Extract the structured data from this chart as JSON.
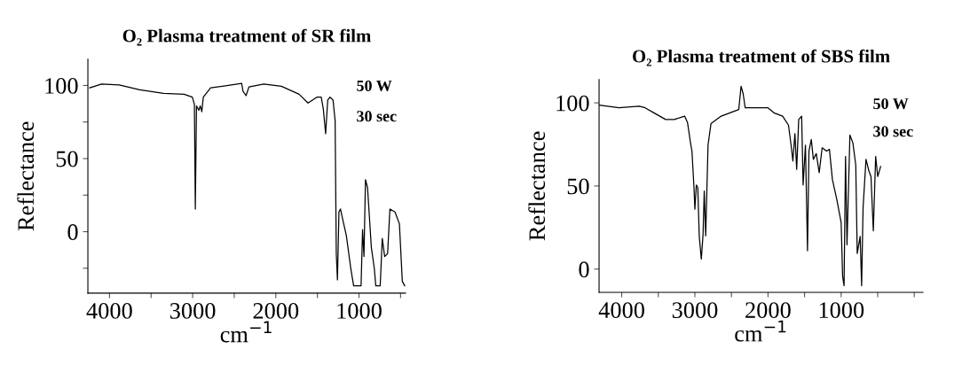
{
  "chart_data": [
    {
      "type": "line",
      "title": "O₂ Plasma treatment of SR film",
      "xlabel": "cm$^{−1}$",
      "ylabel": "Reflectance",
      "annotations": [
        "50 W",
        "30 sec"
      ],
      "color": "#000000",
      "grid": false,
      "legend": false,
      "marker": "none",
      "line_style": "solid",
      "xlim": [
        4260,
        440
      ],
      "xticks": [
        4000,
        {
          "value": 3500,
          "label": null
        },
        3000,
        {
          "value": 2500,
          "label": null
        },
        2000,
        {
          "value": 1500,
          "label": null
        },
        1000,
        {
          "value": 500,
          "label": null
        }
      ],
      "ylim": [
        -42,
        118
      ],
      "yticks": [
        {
          "value": -25,
          "label": null
        },
        0,
        {
          "value": 25,
          "label": null
        },
        50,
        {
          "value": 75,
          "label": null
        },
        100
      ],
      "x": [
        4238,
        4096,
        3883,
        3635,
        3351,
        3103,
        3004,
        2979,
        2968,
        2954,
        2926,
        2908,
        2890,
        2872,
        2784,
        2571,
        2411,
        2394,
        2358,
        2323,
        2145,
        1933,
        1720,
        1613,
        1507,
        1454,
        1429,
        1401,
        1376,
        1348,
        1312,
        1287,
        1273,
        1259,
        1241,
        1223,
        1188,
        1152,
        1099,
        1064,
        975,
        957,
        940,
        922,
        897,
        851,
        816,
        798,
        745,
        720,
        691,
        656,
        628,
        567,
        514,
        479,
        450
      ],
      "values": [
        98.4,
        101,
        100.4,
        97,
        94.6,
        94,
        92,
        87,
        15.5,
        86,
        83,
        86,
        82,
        92,
        98.4,
        100,
        101.4,
        96,
        93,
        99,
        101,
        99.4,
        94,
        88,
        92,
        92,
        84,
        67,
        90,
        92,
        90,
        76,
        -15,
        -33,
        13.5,
        15.5,
        6.4,
        -2.6,
        -25,
        -37,
        -37,
        1.4,
        -17,
        35.6,
        30,
        -11,
        -25,
        -37,
        -37,
        -4.6,
        -17,
        -15,
        15.5,
        13.5,
        5.4,
        -34,
        -37
      ]
    },
    {
      "type": "line",
      "title": "O₂ Plasma treatment of SBS film",
      "xlabel": "cm$^{−1}$",
      "ylabel": "Reflectance",
      "annotations": [
        "50 W",
        "30 sec"
      ],
      "color": "#000000",
      "grid": false,
      "legend": false,
      "marker": "none",
      "line_style": "solid",
      "xlim": [
        4310,
        -120
      ],
      "xticks": [
        4000,
        {
          "value": 3500,
          "label": null
        },
        3000,
        {
          "value": 2500,
          "label": null
        },
        2000,
        {
          "value": 1500,
          "label": null
        },
        1000,
        {
          "value": 500,
          "label": null
        },
        {
          "value": 0,
          "label": null
        }
      ],
      "ylim": [
        -14,
        114
      ],
      "yticks": [
        0,
        50,
        100
      ],
      "x": [
        4308,
        4040,
        3760,
        3680,
        3560,
        3400,
        3280,
        3140,
        3100,
        3060,
        3040,
        3012,
        3000,
        2980,
        2960,
        2940,
        2912,
        2888,
        2872,
        2852,
        2820,
        2780,
        2640,
        2400,
        2368,
        2340,
        2312,
        2160,
        2000,
        1920,
        1800,
        1720,
        1680,
        1660,
        1632,
        1608,
        1580,
        1540,
        1520,
        1488,
        1460,
        1440,
        1408,
        1380,
        1340,
        1300,
        1260,
        1200,
        1160,
        1120,
        1060,
        1000,
        980,
        960,
        940,
        920,
        880,
        840,
        800,
        780,
        740,
        720,
        700,
        660,
        620,
        592,
        560,
        528,
        500,
        460
      ],
      "values": [
        98.6,
        97,
        98,
        97,
        94,
        90,
        90,
        92,
        88,
        76,
        71,
        49,
        36,
        50.6,
        49,
        19.7,
        6,
        21,
        47,
        20,
        74.6,
        87.5,
        92,
        96,
        110,
        105.5,
        97,
        97,
        97,
        94,
        92,
        86.6,
        73,
        65,
        81.5,
        60,
        90,
        92,
        50.6,
        74.6,
        11,
        71,
        78,
        66,
        69.5,
        58,
        73,
        71,
        72,
        54,
        42,
        28,
        -4.3,
        -10,
        67.8,
        14.6,
        80.6,
        76,
        62.6,
        9.4,
        19.7,
        -10,
        37,
        66,
        59,
        55.7,
        23,
        67.8,
        55.7,
        61.7
      ]
    }
  ]
}
